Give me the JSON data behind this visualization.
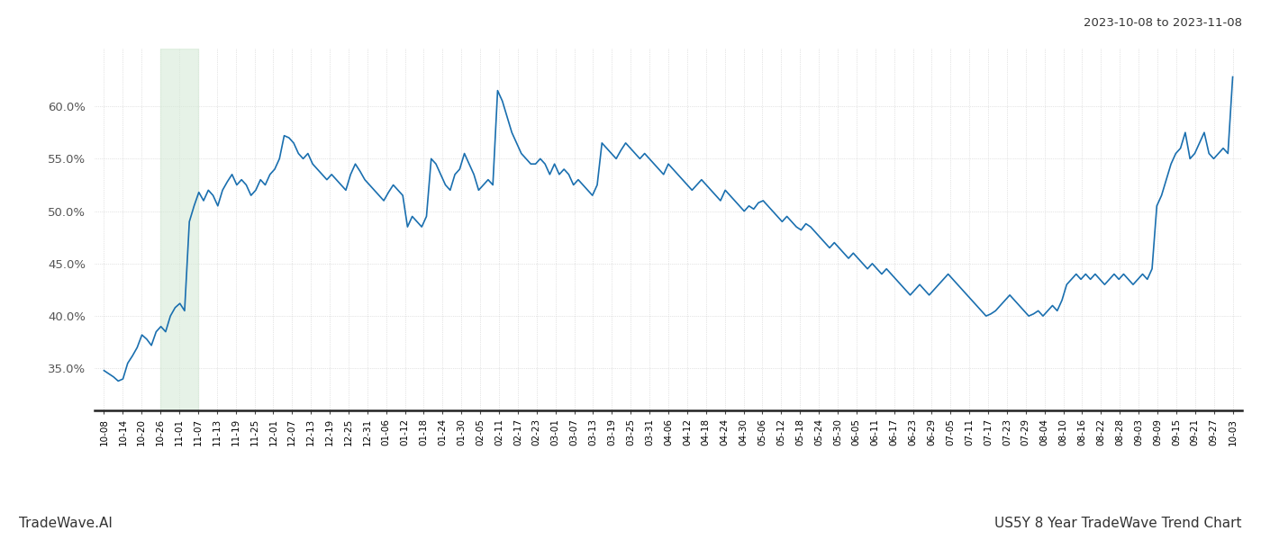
{
  "title_top_right": "2023-10-08 to 2023-11-08",
  "footer_left": "TradeWave.AI",
  "footer_right": "US5Y 8 Year TradeWave Trend Chart",
  "line_color": "#1a6faf",
  "line_width": 1.2,
  "shade_color": "#d6ead7",
  "shade_alpha": 0.6,
  "background_color": "#ffffff",
  "grid_color": "#cccccc",
  "ylim_min": 31.0,
  "ylim_max": 65.5,
  "yticks": [
    35.0,
    40.0,
    45.0,
    50.0,
    55.0,
    60.0
  ],
  "x_labels": [
    "10-08",
    "10-14",
    "10-20",
    "10-26",
    "11-01",
    "11-07",
    "11-13",
    "11-19",
    "11-25",
    "12-01",
    "12-07",
    "12-13",
    "12-19",
    "12-25",
    "12-31",
    "01-06",
    "01-12",
    "01-18",
    "01-24",
    "01-30",
    "02-05",
    "02-11",
    "02-17",
    "02-23",
    "03-01",
    "03-07",
    "03-13",
    "03-19",
    "03-25",
    "03-31",
    "04-06",
    "04-12",
    "04-18",
    "04-24",
    "04-30",
    "05-06",
    "05-12",
    "05-18",
    "05-24",
    "05-30",
    "06-05",
    "06-11",
    "06-17",
    "06-23",
    "06-29",
    "07-05",
    "07-11",
    "07-17",
    "07-23",
    "07-29",
    "08-04",
    "08-10",
    "08-16",
    "08-22",
    "08-28",
    "09-03",
    "09-09",
    "09-15",
    "09-21",
    "09-27",
    "10-03"
  ],
  "shade_label_start": "10-26",
  "shade_label_end": "11-07",
  "values": [
    34.8,
    34.5,
    34.2,
    33.8,
    34.0,
    35.5,
    36.2,
    37.0,
    38.2,
    37.8,
    37.2,
    38.5,
    39.0,
    38.5,
    40.0,
    40.8,
    41.2,
    40.5,
    49.0,
    50.5,
    51.8,
    51.0,
    52.0,
    51.5,
    50.5,
    52.0,
    52.8,
    53.5,
    52.5,
    53.0,
    52.5,
    51.5,
    52.0,
    53.0,
    52.5,
    53.5,
    54.0,
    55.0,
    57.2,
    57.0,
    56.5,
    55.5,
    55.0,
    55.5,
    54.5,
    54.0,
    53.5,
    53.0,
    53.5,
    53.0,
    52.5,
    52.0,
    53.5,
    54.5,
    53.8,
    53.0,
    52.5,
    52.0,
    51.5,
    51.0,
    51.8,
    52.5,
    52.0,
    51.5,
    48.5,
    49.5,
    49.0,
    48.5,
    49.5,
    55.0,
    54.5,
    53.5,
    52.5,
    52.0,
    53.5,
    54.0,
    55.5,
    54.5,
    53.5,
    52.0,
    52.5,
    53.0,
    52.5,
    61.5,
    60.5,
    59.0,
    57.5,
    56.5,
    55.5,
    55.0,
    54.5,
    54.5,
    55.0,
    54.5,
    53.5,
    54.5,
    53.5,
    54.0,
    53.5,
    52.5,
    53.0,
    52.5,
    52.0,
    51.5,
    52.5,
    56.5,
    56.0,
    55.5,
    55.0,
    55.8,
    56.5,
    56.0,
    55.5,
    55.0,
    55.5,
    55.0,
    54.5,
    54.0,
    53.5,
    54.5,
    54.0,
    53.5,
    53.0,
    52.5,
    52.0,
    52.5,
    53.0,
    52.5,
    52.0,
    51.5,
    51.0,
    52.0,
    51.5,
    51.0,
    50.5,
    50.0,
    50.5,
    50.2,
    50.8,
    51.0,
    50.5,
    50.0,
    49.5,
    49.0,
    49.5,
    49.0,
    48.5,
    48.2,
    48.8,
    48.5,
    48.0,
    47.5,
    47.0,
    46.5,
    47.0,
    46.5,
    46.0,
    45.5,
    46.0,
    45.5,
    45.0,
    44.5,
    45.0,
    44.5,
    44.0,
    44.5,
    44.0,
    43.5,
    43.0,
    42.5,
    42.0,
    42.5,
    43.0,
    42.5,
    42.0,
    42.5,
    43.0,
    43.5,
    44.0,
    43.5,
    43.0,
    42.5,
    42.0,
    41.5,
    41.0,
    40.5,
    40.0,
    40.2,
    40.5,
    41.0,
    41.5,
    42.0,
    41.5,
    41.0,
    40.5,
    40.0,
    40.2,
    40.5,
    40.0,
    40.5,
    41.0,
    40.5,
    41.5,
    43.0,
    43.5,
    44.0,
    43.5,
    44.0,
    43.5,
    44.0,
    43.5,
    43.0,
    43.5,
    44.0,
    43.5,
    44.0,
    43.5,
    43.0,
    43.5,
    44.0,
    43.5,
    44.5,
    50.5,
    51.5,
    53.0,
    54.5,
    55.5,
    56.0,
    57.5,
    55.0,
    55.5,
    56.5,
    57.5,
    55.5,
    55.0,
    55.5,
    56.0,
    55.5,
    62.8
  ]
}
